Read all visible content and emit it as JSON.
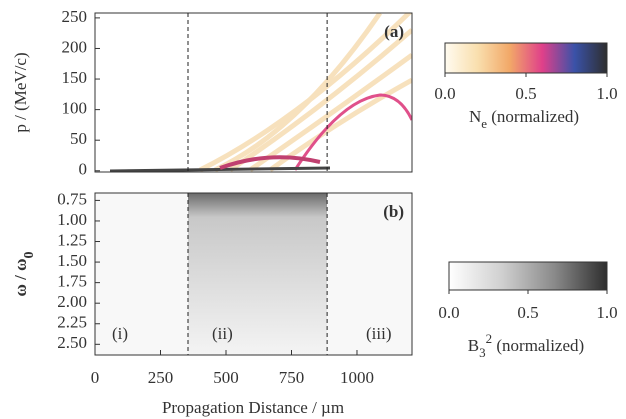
{
  "chart_data": [
    {
      "type": "heatmap",
      "panel": "(a)",
      "ylabel": "p / (MeV/c)",
      "xlim": [
        0,
        1210
      ],
      "ylim": [
        -2,
        258
      ],
      "yticks": [
        0,
        50,
        100,
        150,
        200,
        250
      ],
      "vlines": [
        355,
        886
      ],
      "colorbar": {
        "label": "N",
        "label_sub": "e",
        "label_rest": " (normalized)",
        "lim": [
          0,
          1
        ],
        "colors": [
          "#fffbf0",
          "#f9dfae",
          "#f2a868",
          "#e0408a",
          "#3a52a8",
          "#2e2e2e"
        ],
        "ticks": [
          {
            "value": 0,
            "label": "0.0"
          },
          0.5,
          {
            "value": 1,
            "label": "1.0"
          }
        ]
      }
    },
    {
      "type": "heatmap",
      "panel": "(b)",
      "ylabel": "ω / ω",
      "ylabel_sub": "0",
      "xlabel": "Propagation Distance / µm",
      "xlim": [
        0,
        1210
      ],
      "xticks": [
        0,
        250,
        500,
        750,
        1000
      ],
      "ylim": [
        2.63,
        0.66
      ],
      "yticks": [
        0.75,
        {
          "value": 1,
          "label": "1.00"
        },
        1.25,
        {
          "value": 1.5,
          "label": "1.50"
        },
        1.75,
        {
          "value": 2,
          "label": "2.00"
        },
        2.25,
        {
          "value": 2.5,
          "label": "2.50"
        }
      ],
      "vlines": [
        355,
        886
      ],
      "regions": [
        "(i)",
        "(ii)",
        "(iii)"
      ],
      "colorbar": {
        "label": "B",
        "label_sub": "3",
        "label_sup": "2",
        "label_rest": " (normalized)",
        "lim": [
          0,
          1
        ],
        "colors": [
          "#ffffff",
          "#d0d0d0",
          "#8a8a8a",
          "#2e2e2e"
        ],
        "ticks": [
          {
            "value": 0,
            "label": "0.0"
          },
          0.5,
          {
            "value": 1,
            "label": "1.0"
          }
        ]
      }
    }
  ]
}
